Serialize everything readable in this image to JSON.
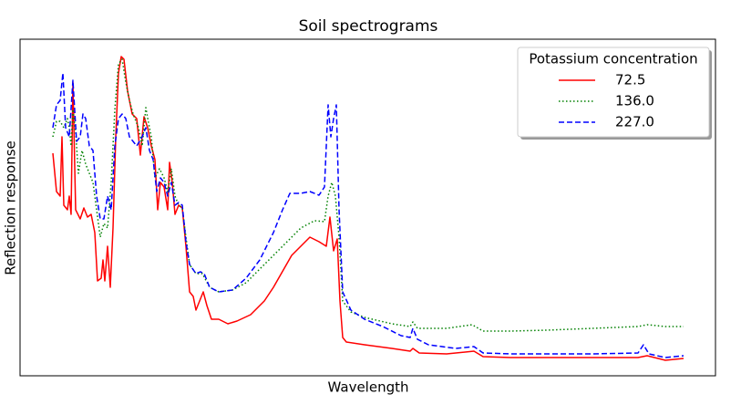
{
  "chart_data": {
    "type": "line",
    "title": "Soil spectrograms",
    "xlabel": "Wavelength",
    "ylabel": "Reflection response",
    "legend_title": "Potassium concentration",
    "legend": "upper right",
    "xlim": [
      0,
      763
    ],
    "ylim": [
      0,
      369
    ],
    "series": [
      {
        "name": "72.5",
        "color": "#ff0000",
        "style": "solid",
        "x": [
          36,
          40,
          44,
          46,
          48,
          52,
          54,
          56,
          58,
          61,
          66,
          70,
          74,
          78,
          82,
          85,
          89,
          91,
          93,
          96,
          99,
          102,
          105,
          108,
          111,
          114,
          118,
          123,
          128,
          132,
          136,
          140,
          144,
          148,
          151,
          154,
          158,
          162,
          164,
          167,
          170,
          174,
          178,
          182,
          186,
          190,
          193,
          197,
          201,
          205,
          210,
          218,
          228,
          238,
          253,
          268,
          278,
          298,
          318,
          328,
          336,
          340,
          344,
          348,
          351,
          354,
          358,
          378,
          408,
          428,
          431,
          438,
          468,
          498,
          508,
          538,
          578,
          628,
          678,
          688,
          708,
          728
        ],
        "values": [
          244,
          202,
          197,
          262,
          187,
          182,
          197,
          177,
          322,
          182,
          172,
          184,
          174,
          177,
          157,
          104,
          107,
          127,
          104,
          142,
          97,
          162,
          262,
          332,
          350,
          347,
          312,
          287,
          282,
          242,
          284,
          272,
          252,
          237,
          182,
          212,
          207,
          182,
          234,
          212,
          177,
          187,
          184,
          142,
          92,
          87,
          72,
          82,
          92,
          77,
          62,
          62,
          57,
          60,
          67,
          82,
          97,
          132,
          152,
          147,
          142,
          174,
          137,
          150,
          82,
          42,
          37,
          34,
          30,
          27,
          30,
          25,
          24,
          27,
          21,
          20,
          20,
          20,
          20,
          22,
          17,
          19
        ]
      },
      {
        "name": "136.0",
        "color": "#008000",
        "style": "dotted",
        "x": [
          36,
          40,
          44,
          48,
          52,
          54,
          56,
          58,
          61,
          64,
          68,
          72,
          76,
          80,
          84,
          88,
          92,
          96,
          100,
          104,
          108,
          112,
          116,
          120,
          124,
          130,
          134,
          138,
          141,
          144,
          148,
          153,
          158,
          162,
          166,
          170,
          174,
          178,
          182,
          186,
          193,
          200,
          208,
          218,
          233,
          248,
          268,
          288,
          308,
          323,
          334,
          338,
          342,
          346,
          350,
          354,
          363,
          378,
          408,
          428,
          431,
          436,
          468,
          496,
          508,
          538,
          578,
          628,
          678,
          688,
          708,
          728
        ],
        "values": [
          262,
          279,
          279,
          272,
          282,
          272,
          252,
          292,
          267,
          222,
          247,
          232,
          222,
          212,
          182,
          152,
          167,
          162,
          212,
          292,
          342,
          347,
          322,
          302,
          287,
          272,
          252,
          294,
          277,
          262,
          217,
          227,
          217,
          202,
          227,
          197,
          187,
          184,
          152,
          122,
          112,
          112,
          97,
          92,
          94,
          102,
          122,
          142,
          162,
          170,
          169,
          197,
          212,
          197,
          152,
          82,
          70,
          64,
          57,
          54,
          59,
          52,
          52,
          56,
          49,
          49,
          50,
          52,
          54,
          56,
          54,
          54
        ]
      },
      {
        "name": "227.0",
        "color": "#0000ff",
        "style": "dashed",
        "x": [
          36,
          40,
          44,
          47,
          50,
          54,
          58,
          62,
          66,
          69,
          72,
          76,
          80,
          84,
          88,
          92,
          96,
          100,
          104,
          108,
          112,
          116,
          120,
          128,
          134,
          138,
          142,
          146,
          150,
          154,
          158,
          162,
          166,
          170,
          174,
          178,
          182,
          186,
          193,
          198,
          202,
          208,
          218,
          233,
          248,
          263,
          278,
          288,
          296,
          308,
          318,
          328,
          334,
          338,
          341,
          344,
          347,
          350,
          354,
          363,
          378,
          398,
          418,
          428,
          431,
          436,
          448,
          478,
          498,
          508,
          538,
          578,
          628,
          678,
          684,
          690,
          708,
          728
        ],
        "values": [
          272,
          297,
          302,
          332,
          272,
          262,
          324,
          257,
          262,
          287,
          282,
          252,
          247,
          197,
          172,
          172,
          197,
          182,
          252,
          282,
          287,
          282,
          262,
          252,
          262,
          272,
          247,
          237,
          202,
          217,
          212,
          197,
          212,
          187,
          190,
          187,
          147,
          122,
          112,
          114,
          112,
          97,
          92,
          94,
          107,
          127,
          157,
          182,
          200,
          200,
          202,
          198,
          207,
          297,
          262,
          282,
          297,
          182,
          92,
          72,
          62,
          54,
          44,
          42,
          52,
          40,
          34,
          30,
          32,
          25,
          24,
          24,
          24,
          25,
          34,
          24,
          20,
          22
        ]
      }
    ]
  }
}
